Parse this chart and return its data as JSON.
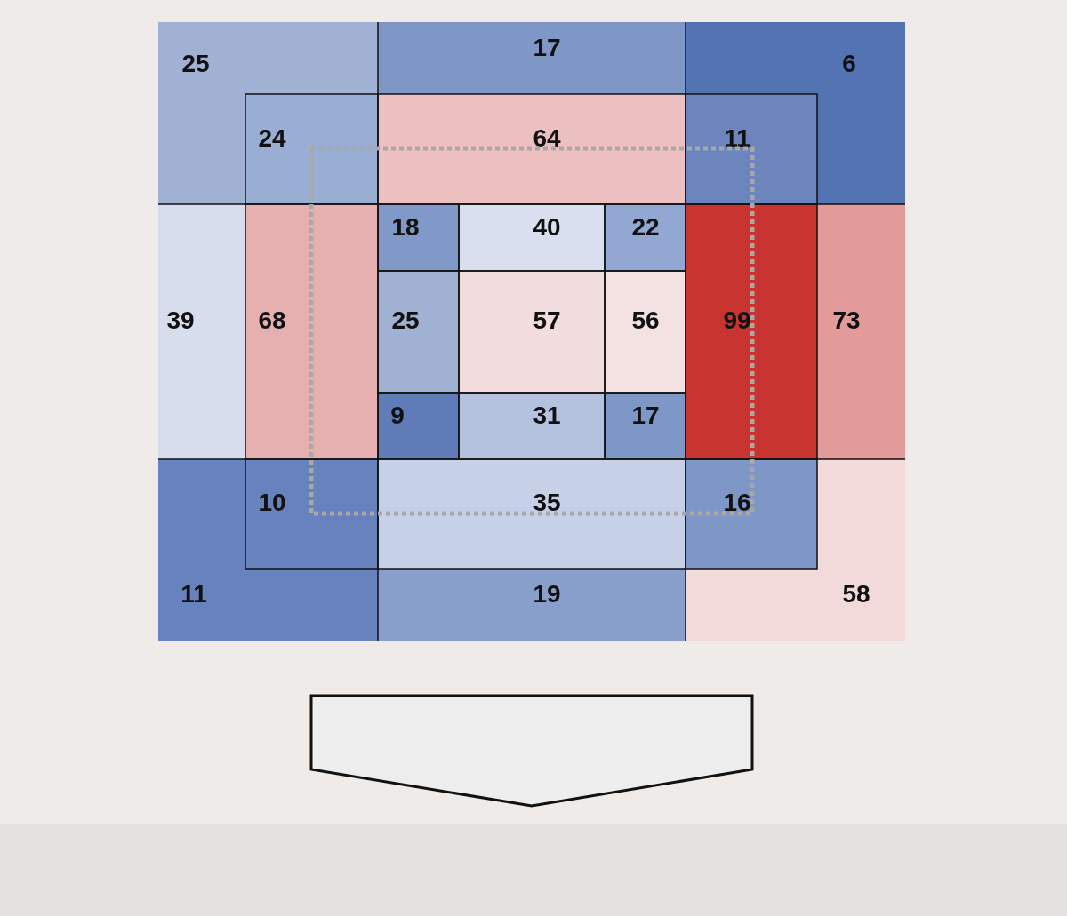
{
  "chart_data": {
    "type": "other",
    "data_labels": true,
    "values": [
      25,
      17,
      6,
      24,
      64,
      11,
      18,
      40,
      22,
      39,
      68,
      25,
      57,
      56,
      99,
      73,
      9,
      31,
      17,
      10,
      35,
      16,
      11,
      19,
      58
    ],
    "colors": [
      "#a0b1d3",
      "#7f97c7",
      "#5373b2",
      "#9aaed4",
      "#ecbfc1",
      "#6c86bd",
      "#8199c9",
      "#d9dfee",
      "#92a7d2",
      "#d7dded",
      "#e6b0b0",
      "#a0b1d3",
      "#f3dcdd",
      "#f4e2e2",
      "#c83430",
      "#e29a9a",
      "#5f7bb8",
      "#b4c2df",
      "#7f97c7",
      "#6882bd",
      "#c6d0e6",
      "#7f97c7",
      "#6882bd",
      "#889fcc",
      "#f2dada"
    ]
  }
}
